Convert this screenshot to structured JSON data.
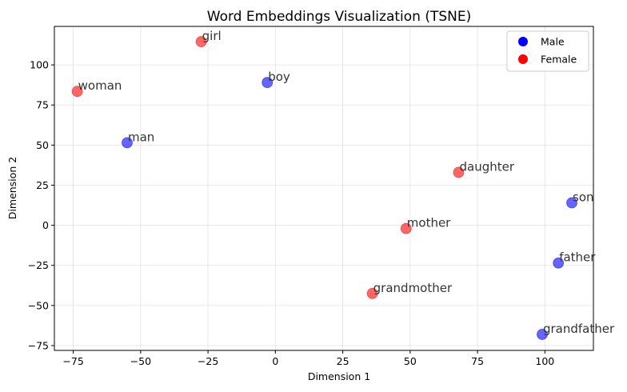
{
  "chart_data": {
    "type": "scatter",
    "title": "Word Embeddings Visualization (TSNE)",
    "xlabel": "Dimension 1",
    "ylabel": "Dimension 2",
    "xlim": [
      -82,
      118
    ],
    "ylim": [
      -78,
      124
    ],
    "xticks": [
      -75,
      -50,
      -25,
      0,
      25,
      50,
      75,
      100
    ],
    "yticks": [
      -75,
      -50,
      -25,
      0,
      25,
      50,
      75,
      100
    ],
    "grid": true,
    "legend_position": "top-right",
    "series": [
      {
        "name": "Male",
        "color": "#0000ff",
        "points": [
          {
            "label": "boy",
            "x": -3,
            "y": 89
          },
          {
            "label": "man",
            "x": -55,
            "y": 51.5
          },
          {
            "label": "son",
            "x": 110,
            "y": 14
          },
          {
            "label": "father",
            "x": 105,
            "y": -23.5
          },
          {
            "label": "grandfather",
            "x": 99,
            "y": -68
          }
        ]
      },
      {
        "name": "Female",
        "color": "#ff0000",
        "points": [
          {
            "label": "girl",
            "x": -27.5,
            "y": 114.5
          },
          {
            "label": "woman",
            "x": -73.5,
            "y": 83.5
          },
          {
            "label": "daughter",
            "x": 68,
            "y": 33
          },
          {
            "label": "mother",
            "x": 48.5,
            "y": -2
          },
          {
            "label": "grandmother",
            "x": 36,
            "y": -42.5
          }
        ]
      }
    ]
  }
}
